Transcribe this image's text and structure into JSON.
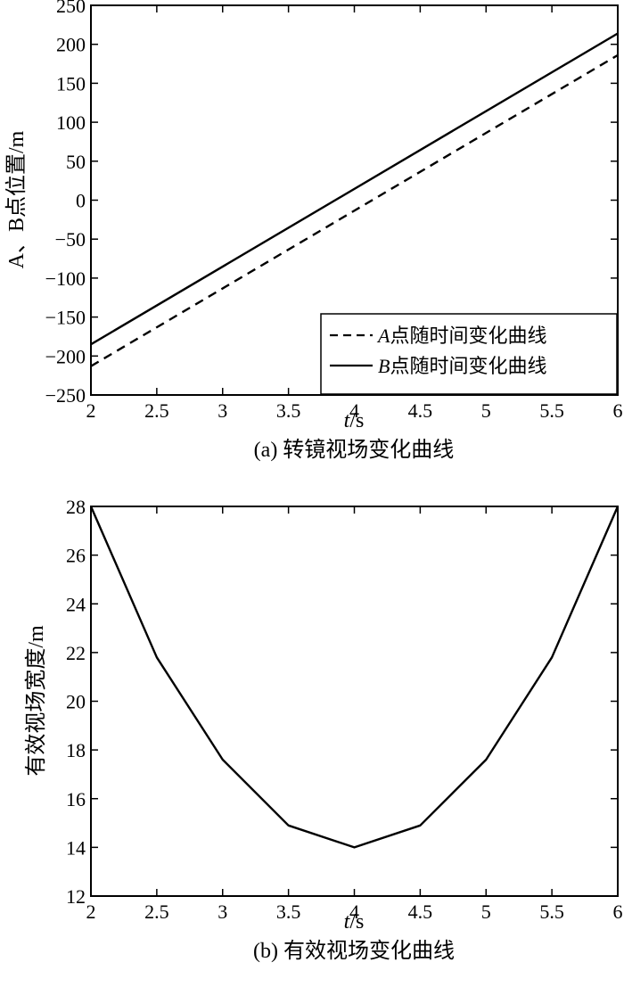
{
  "chart_data": [
    {
      "type": "line",
      "caption": "(a) 转镜视场变化曲线",
      "xlabel_italic": "t",
      "xlabel_unit": "/s",
      "ylabel": "A、B点位置/m",
      "xlim": [
        2,
        6
      ],
      "ylim": [
        -250,
        250
      ],
      "xticks": [
        2,
        2.5,
        3,
        3.5,
        4,
        4.5,
        5,
        5.5,
        6
      ],
      "xtick_labels": [
        "2",
        "2.5",
        "3",
        "3.5",
        "4",
        "4.5",
        "5",
        "5.5",
        "6"
      ],
      "yticks": [
        -250,
        -200,
        -150,
        -100,
        -50,
        0,
        50,
        100,
        150,
        200,
        250
      ],
      "ytick_labels": [
        "−250",
        "−200",
        "−150",
        "−100",
        "−50",
        "0",
        "50",
        "100",
        "150",
        "200",
        "250"
      ],
      "grid": false,
      "legend_position": "bottom-right",
      "series": [
        {
          "name_italic": "A",
          "name_rest": "点随时间变化曲线",
          "style": "dashed",
          "x": [
            2,
            6
          ],
          "y": [
            -213,
            186
          ]
        },
        {
          "name_italic": "B",
          "name_rest": "点随时间变化曲线",
          "style": "solid",
          "x": [
            2,
            6
          ],
          "y": [
            -185,
            214
          ]
        }
      ]
    },
    {
      "type": "line",
      "caption": "(b) 有效视场变化曲线",
      "xlabel_italic": "t",
      "xlabel_unit": "/s",
      "ylabel": "有效视场宽度/m",
      "xlim": [
        2,
        6
      ],
      "ylim": [
        12,
        28
      ],
      "xticks": [
        2,
        2.5,
        3,
        3.5,
        4,
        4.5,
        5,
        5.5,
        6
      ],
      "xtick_labels": [
        "2",
        "2.5",
        "3",
        "3.5",
        "4",
        "4.5",
        "5",
        "5.5",
        "6"
      ],
      "yticks": [
        12,
        14,
        16,
        18,
        20,
        22,
        24,
        26,
        28
      ],
      "ytick_labels": [
        "12",
        "14",
        "16",
        "18",
        "20",
        "22",
        "24",
        "26",
        "28"
      ],
      "grid": false,
      "series": [
        {
          "style": "solid",
          "x": [
            2,
            2.5,
            3,
            3.5,
            4,
            4.5,
            5,
            5.5,
            6
          ],
          "y": [
            28,
            21.8,
            17.6,
            14.9,
            14.0,
            14.9,
            17.6,
            21.8,
            28
          ]
        }
      ]
    }
  ]
}
